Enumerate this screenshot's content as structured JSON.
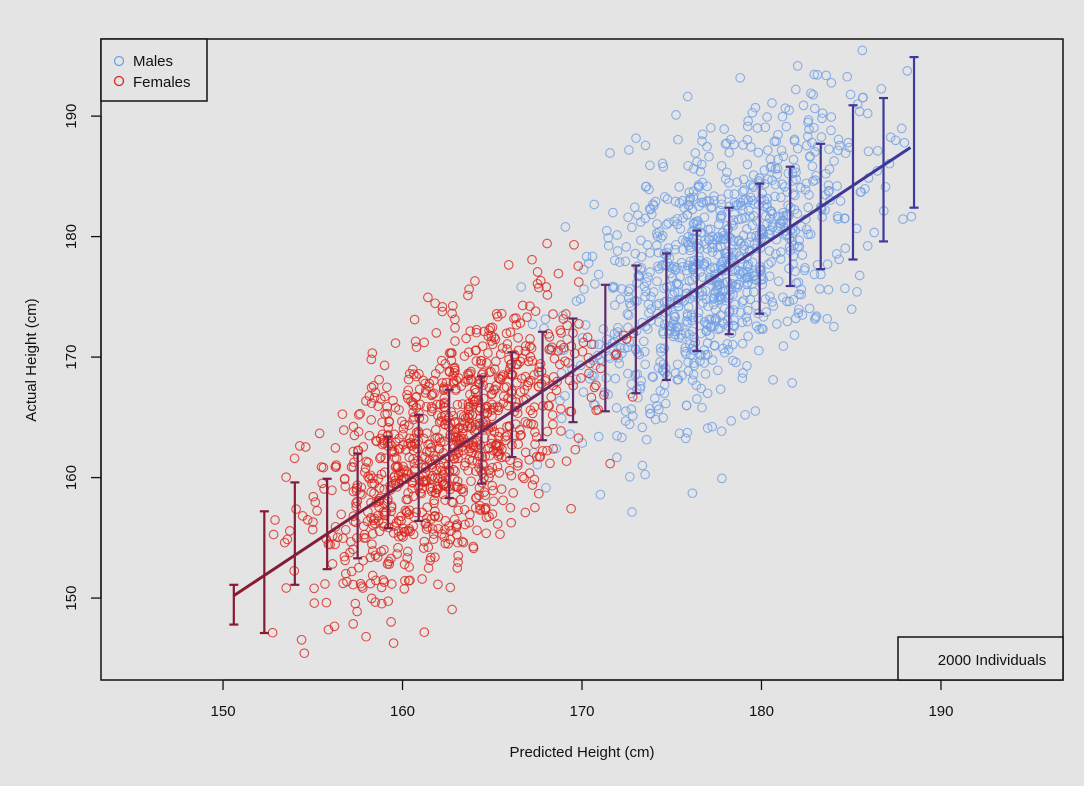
{
  "chart_data": {
    "type": "scatter",
    "xlabel": "Predicted Height (cm)",
    "ylabel": "Actual Height (cm)",
    "xlim": [
      143.2,
      196.8
    ],
    "ylim": [
      143.2,
      196.4
    ],
    "xticks": [
      150,
      160,
      170,
      180,
      190
    ],
    "yticks": [
      150,
      160,
      170,
      180,
      190
    ],
    "grid": false,
    "legend_position": "top-left",
    "annotation": "2000 Individuals",
    "series": [
      {
        "name": "Males",
        "color": "#6f9fe6",
        "marker": "open-circle",
        "count": 1000,
        "x_mean": 177.5,
        "x_sd": 4.0,
        "y_mean": 177.5,
        "y_sd": 6.5,
        "x_range": [
          163.5,
          188.5
        ],
        "y_range": [
          156,
          195.5
        ]
      },
      {
        "name": "Females",
        "color": "#d9261c",
        "marker": "open-circle",
        "count": 1000,
        "x_mean": 162.5,
        "x_sd": 3.8,
        "y_mean": 162.5,
        "y_sd": 6.0,
        "x_range": [
          152.5,
          175.5
        ],
        "y_range": [
          145,
          179.5
        ]
      }
    ],
    "trend_line": {
      "x": [
        150.6,
        188.3
      ],
      "y": [
        150.2,
        187.4
      ],
      "color_start": "#8b1a2e",
      "color_end": "#3a3aa0"
    },
    "error_bars": [
      {
        "x": 150.6,
        "low": 147.8,
        "high": 151.1
      },
      {
        "x": 152.3,
        "low": 147.1,
        "high": 157.2
      },
      {
        "x": 154.0,
        "low": 151.1,
        "high": 159.6
      },
      {
        "x": 155.8,
        "low": 152.4,
        "high": 159.9
      },
      {
        "x": 157.5,
        "low": 153.3,
        "high": 162.0
      },
      {
        "x": 159.2,
        "low": 155.8,
        "high": 163.4
      },
      {
        "x": 160.9,
        "low": 156.4,
        "high": 165.2
      },
      {
        "x": 162.6,
        "low": 158.3,
        "high": 167.3
      },
      {
        "x": 164.4,
        "low": 159.5,
        "high": 168.4
      },
      {
        "x": 166.1,
        "low": 161.7,
        "high": 170.4
      },
      {
        "x": 167.8,
        "low": 163.1,
        "high": 172.1
      },
      {
        "x": 169.5,
        "low": 164.6,
        "high": 173.2
      },
      {
        "x": 171.3,
        "low": 165.5,
        "high": 176.0
      },
      {
        "x": 173.0,
        "low": 167.0,
        "high": 177.6
      },
      {
        "x": 174.7,
        "low": 168.1,
        "high": 178.6
      },
      {
        "x": 176.4,
        "low": 170.5,
        "high": 180.5
      },
      {
        "x": 178.2,
        "low": 171.9,
        "high": 182.4
      },
      {
        "x": 179.9,
        "low": 173.6,
        "high": 184.4
      },
      {
        "x": 181.6,
        "low": 175.9,
        "high": 185.8
      },
      {
        "x": 183.3,
        "low": 177.3,
        "high": 187.7
      },
      {
        "x": 185.1,
        "low": 178.1,
        "high": 190.9
      },
      {
        "x": 186.8,
        "low": 179.6,
        "high": 191.5
      },
      {
        "x": 188.5,
        "low": 182.4,
        "high": 194.9
      }
    ]
  }
}
